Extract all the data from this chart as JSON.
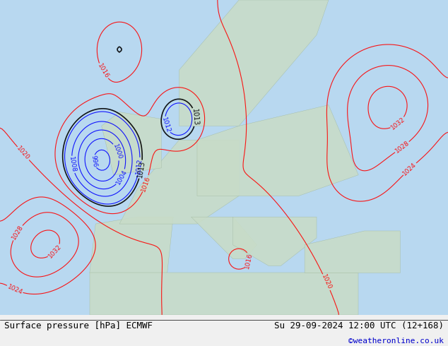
{
  "title_left": "Surface pressure [hPa] ECMWF",
  "title_right": "Su 29-09-2024 12:00 UTC (12+168)",
  "credit": "©weatheronline.co.uk",
  "bg_color": "#f0f0f0",
  "map_bg": "#e8f4e8",
  "ocean_color": "#d0e8f8",
  "land_color": "#e8f4e8",
  "label_fontsize": 9,
  "title_fontsize": 10,
  "credit_color": "#0000cc"
}
